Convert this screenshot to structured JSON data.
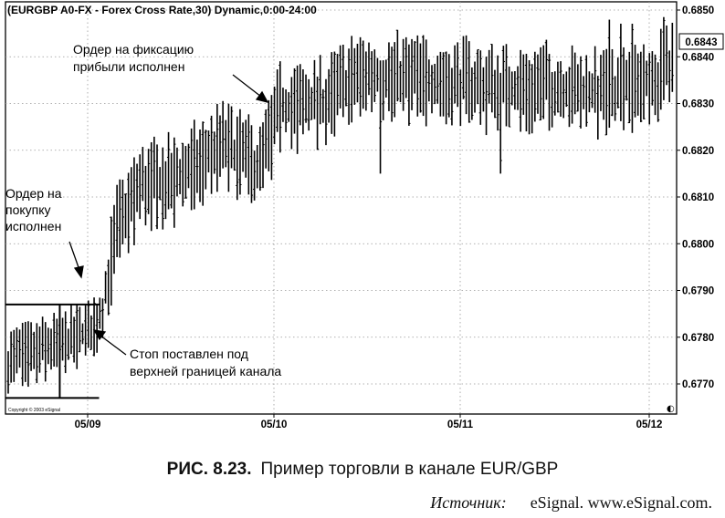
{
  "chart_data": {
    "type": "ohlc",
    "title": "(EURGBP A0-FX - Forex Cross Rate,30) Dynamic,0:00-24:00",
    "copyright": "Copyright © 2003 eSignal",
    "last_price": "0.6843",
    "corner_glyph": "◐",
    "y_ticks": [
      "0.6850",
      "0.6840",
      "0.6830",
      "0.6820",
      "0.6810",
      "0.6800",
      "0.6790",
      "0.6780",
      "0.6770"
    ],
    "x_ticks": [
      "05/09",
      "05/10",
      "05/11",
      "05/12"
    ],
    "ylim": [
      0.6762,
      0.6853
    ],
    "key_points": [
      {
        "bar": 0,
        "price": 0.6775
      },
      {
        "bar": 15,
        "price": 0.6778
      },
      {
        "bar": 28,
        "price": 0.6781
      },
      {
        "bar": 33,
        "price": 0.6786
      },
      {
        "bar": 38,
        "price": 0.6803
      },
      {
        "bar": 46,
        "price": 0.6812
      },
      {
        "bar": 60,
        "price": 0.6814
      },
      {
        "bar": 75,
        "price": 0.6821
      },
      {
        "bar": 88,
        "price": 0.6816
      },
      {
        "bar": 95,
        "price": 0.6829
      },
      {
        "bar": 110,
        "price": 0.683
      },
      {
        "bar": 122,
        "price": 0.6836
      },
      {
        "bar": 150,
        "price": 0.6835
      },
      {
        "bar": 175,
        "price": 0.6833
      },
      {
        "bar": 185,
        "price": 0.6834
      },
      {
        "bar": 205,
        "price": 0.6832
      },
      {
        "bar": 225,
        "price": 0.6835
      },
      {
        "bar": 232,
        "price": 0.6838
      }
    ],
    "channel": {
      "upper": 0.6787,
      "lower": 0.6767,
      "start_bar": 0,
      "end_bar": 26,
      "marker_bar": 18
    },
    "spikes": [
      {
        "bar": 130,
        "low": 0.6815
      },
      {
        "bar": 172,
        "low": 0.6815
      }
    ]
  },
  "annotations": {
    "buy_order": [
      "Ордер на",
      "покупку",
      "исполнен"
    ],
    "take_profit": [
      "Ордер на фиксацию",
      "прибыли исполнен"
    ],
    "stop": [
      "Стоп поставлен под",
      "верхней границей канала"
    ]
  },
  "caption": {
    "number": "РИС. 8.23.",
    "text": "Пример торговли в канале EUR/GBP"
  },
  "source": {
    "label": "Источник:",
    "text": "eSignal. www.eSignal.com."
  }
}
